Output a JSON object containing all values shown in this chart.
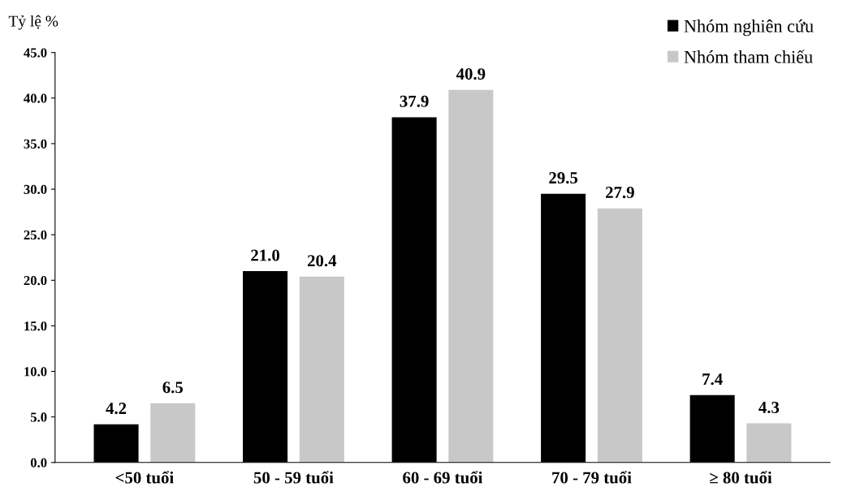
{
  "chart_data": {
    "type": "bar",
    "ylabel": "Tỷ lệ %",
    "categories": [
      "<50 tuổi",
      "50 - 59 tuổi",
      "60 - 69 tuổi",
      "70 - 79 tuổi",
      "≥ 80 tuổi"
    ],
    "series": [
      {
        "name": "Nhóm nghiên cứu",
        "color": "#000000",
        "values": [
          4.2,
          21.0,
          37.9,
          29.5,
          7.4
        ],
        "value_labels": [
          "4.2",
          "21.0",
          "37.9",
          "29.5",
          "7.4"
        ]
      },
      {
        "name": "Nhóm tham chiếu",
        "color": "#c8c8c8",
        "values": [
          6.5,
          20.4,
          40.9,
          27.9,
          4.3
        ],
        "value_labels": [
          "6.5",
          "20.4",
          "40.9",
          "27.9",
          "4.3"
        ]
      }
    ],
    "ylim": [
      0,
      45
    ],
    "yticks": [
      {
        "value": 0,
        "label": "0.0"
      },
      {
        "value": 5,
        "label": "5.0"
      },
      {
        "value": 10,
        "label": "10.0"
      },
      {
        "value": 15,
        "label": "15.0"
      },
      {
        "value": 20,
        "label": "20.0"
      },
      {
        "value": 25,
        "label": "25.0"
      },
      {
        "value": 30,
        "label": "30.0"
      },
      {
        "value": 35,
        "label": "35.0"
      },
      {
        "value": 40,
        "label": "40.0"
      },
      {
        "value": 45,
        "label": "45.0"
      }
    ],
    "grid": false,
    "legend": "top right"
  }
}
